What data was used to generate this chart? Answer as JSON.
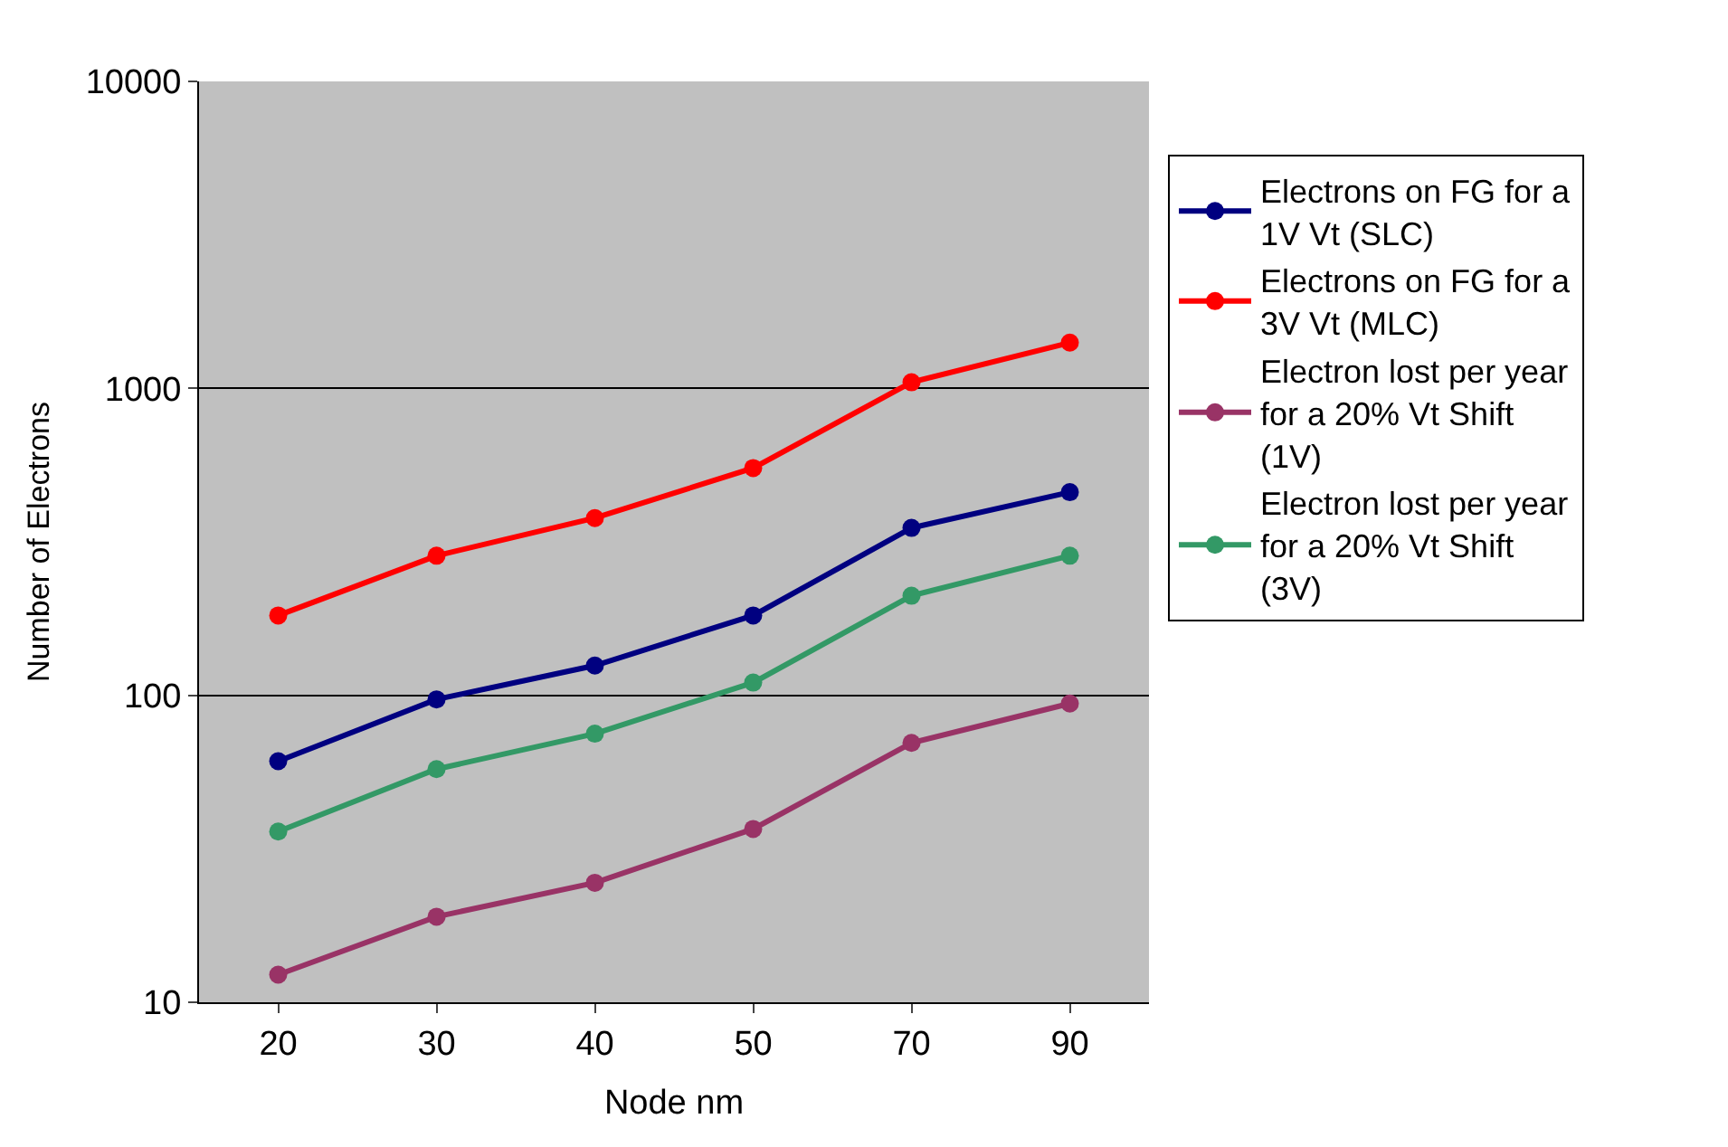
{
  "chart_data": {
    "type": "line",
    "xlabel": "Node nm",
    "ylabel": "Number of Electrons",
    "categories": [
      "20",
      "30",
      "40",
      "50",
      "70",
      "90"
    ],
    "series": [
      {
        "name": "Electrons on FG for a 1V Vt (SLC)",
        "color": "#000080",
        "values": [
          61,
          97,
          125,
          182,
          351,
          459
        ]
      },
      {
        "name": "Electrons on FG for a 3V Vt (MLC)",
        "color": "#ff0000",
        "values": [
          182,
          285,
          378,
          550,
          1047,
          1409
        ]
      },
      {
        "name": "Electron lost per year for a 20% Vt Shift (1V)",
        "color": "#993366",
        "values": [
          12.3,
          19,
          24.5,
          36.7,
          70,
          94
        ]
      },
      {
        "name": "Electron lost per year for a 20% Vt Shift (3V)",
        "color": "#339966",
        "values": [
          36,
          57.5,
          75,
          110,
          211,
          285
        ]
      }
    ],
    "log": "y",
    "ylim": [
      10,
      10000
    ],
    "yticks": [
      10,
      100,
      1000,
      10000
    ],
    "grid": "y",
    "legend": "right",
    "marker": "circle",
    "line_style": "solid"
  }
}
